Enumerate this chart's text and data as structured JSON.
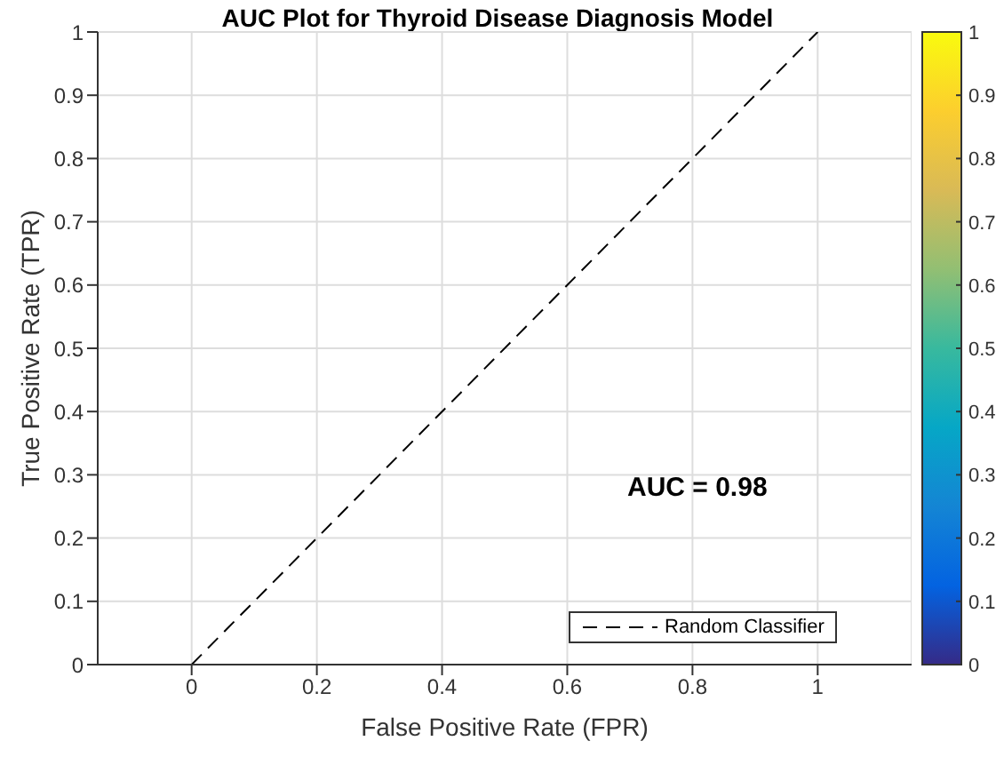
{
  "chart_data": {
    "type": "line",
    "title": "AUC Plot for Thyroid Disease Diagnosis Model",
    "xlabel": "False Positive Rate (FPR)",
    "ylabel": "True Positive Rate (TPR)",
    "series": [
      {
        "name": "Random Classifier",
        "color": "#000000",
        "x": [
          0,
          1
        ],
        "values": [
          0,
          1
        ],
        "line_style": "dashed",
        "marker": "none"
      }
    ],
    "xlim": [
      -0.15,
      1.15
    ],
    "xticks": [
      0,
      0.2,
      0.4,
      0.6,
      0.8,
      1
    ],
    "ylim": [
      0,
      1
    ],
    "yticks": [
      0,
      0.1,
      0.2,
      0.3,
      0.4,
      0.5,
      0.6,
      0.7,
      0.8,
      0.9,
      1
    ],
    "grid": true,
    "legend": "bottom right",
    "annotations": [
      "AUC = 0.98"
    ],
    "clim": [
      0,
      1
    ],
    "cticks": [
      0,
      0.1,
      0.2,
      0.3,
      0.4,
      0.5,
      0.6,
      0.7,
      0.8,
      0.9,
      1
    ]
  }
}
